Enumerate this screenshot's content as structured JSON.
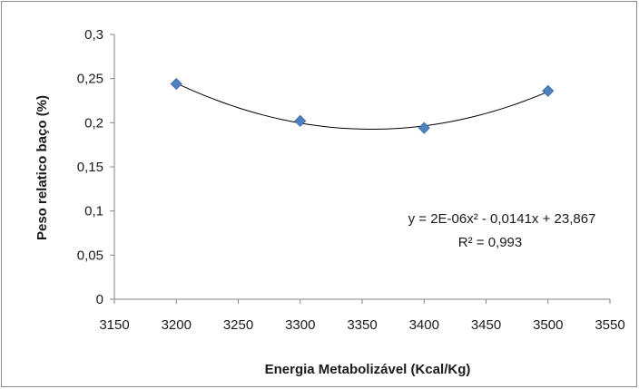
{
  "chart_data": {
    "type": "scatter",
    "xlabel": "Energia Metabolizável (Kcal/Kg)",
    "ylabel": "Peso relatico baço (%)",
    "xlim": [
      3150,
      3550
    ],
    "ylim": [
      0,
      0.3
    ],
    "x_ticks": [
      "3150",
      "3200",
      "3250",
      "3300",
      "3350",
      "3400",
      "3450",
      "3500",
      "3550"
    ],
    "y_ticks": [
      "0",
      "0,05",
      "0,1",
      "0,15",
      "0,2",
      "0,25",
      "0,3"
    ],
    "grid": false,
    "legend": "none",
    "series": [
      {
        "marker": "diamond",
        "color": "#4f81bd",
        "x": [
          3200,
          3300,
          3400,
          3500
        ],
        "y": [
          0.244,
          0.202,
          0.194,
          0.236
        ]
      }
    ],
    "trendline": {
      "type": "polynomial",
      "order": 2,
      "color": "#000000",
      "equation": "y = 2E-06x² - 0,0141x + 23,867",
      "r2": "R² = 0,993"
    }
  }
}
